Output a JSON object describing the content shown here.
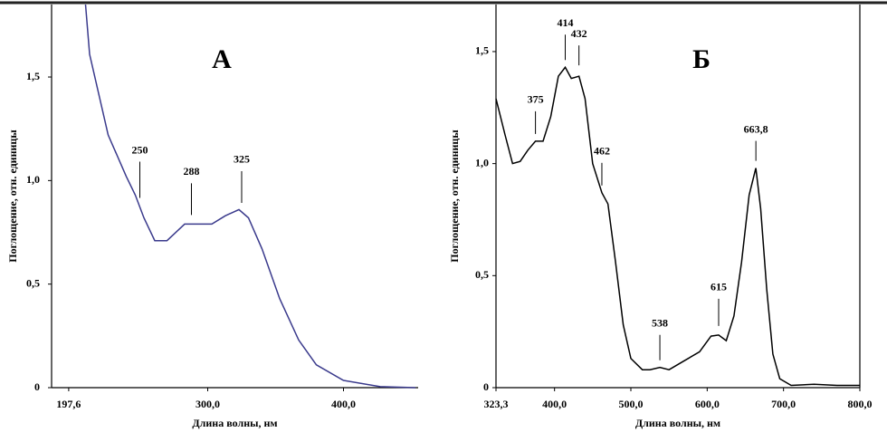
{
  "chart_data": [
    {
      "type": "line",
      "title": "А",
      "xlabel": "Длина волны, нм",
      "ylabel": "Поглощение, отн. единицы",
      "color": "#3a3a8c",
      "x": [
        210,
        213,
        226.7,
        240,
        246.7,
        253,
        261,
        270,
        283,
        290,
        303,
        313,
        323,
        330,
        340,
        353,
        367,
        380,
        400,
        427,
        453
      ],
      "values": [
        1.85,
        1.61,
        1.22,
        1.02,
        0.93,
        0.82,
        0.71,
        0.71,
        0.79,
        0.79,
        0.79,
        0.83,
        0.86,
        0.82,
        0.67,
        0.43,
        0.23,
        0.11,
        0.035,
        0.005,
        0
      ],
      "xlim": [
        185,
        455
      ],
      "ylim": [
        0,
        1.85
      ],
      "xticks": [
        {
          "value": 197.6,
          "label": "197,6"
        },
        {
          "value": 300,
          "label": "300,0"
        },
        {
          "value": 400,
          "label": "400,0"
        }
      ],
      "yticks": [
        0,
        {
          "value": 0.5,
          "label": "0,5"
        },
        {
          "value": 1,
          "label": "1,0"
        },
        {
          "value": 1.5,
          "label": "1,5"
        }
      ],
      "peak_labels": [
        250,
        288,
        325
      ]
    },
    {
      "type": "line",
      "title": "Б",
      "xlabel": "Длина волны, нм",
      "ylabel": "Поглощение, отн. единицы",
      "color": "#000000",
      "x": [
        323.3,
        335,
        345,
        355,
        365,
        375,
        385,
        395,
        405,
        414,
        422,
        432,
        440,
        450,
        462,
        470,
        480,
        490,
        500,
        515,
        525,
        538,
        550,
        570,
        590,
        605,
        615,
        625,
        635,
        645,
        655,
        663.8,
        670,
        678,
        686,
        695,
        710,
        740,
        770,
        800
      ],
      "values": [
        1.29,
        1.13,
        1.0,
        1.01,
        1.06,
        1.1,
        1.1,
        1.21,
        1.39,
        1.43,
        1.38,
        1.39,
        1.29,
        1.0,
        0.87,
        0.82,
        0.56,
        0.28,
        0.13,
        0.08,
        0.08,
        0.09,
        0.08,
        0.12,
        0.16,
        0.23,
        0.235,
        0.21,
        0.32,
        0.56,
        0.86,
        0.98,
        0.8,
        0.44,
        0.15,
        0.04,
        0.01,
        0.015,
        0.01,
        0.01
      ],
      "xlim": [
        323.3,
        800
      ],
      "ylim": [
        0,
        1.71
      ],
      "xticks": [
        {
          "value": 323.3,
          "label": "323,3"
        },
        {
          "value": 400,
          "label": "400,0"
        },
        {
          "value": 500,
          "label": "500,0"
        },
        {
          "value": 600,
          "label": "600,0"
        },
        {
          "value": 700,
          "label": "700,0"
        },
        {
          "value": 800,
          "label": "800,0"
        }
      ],
      "yticks": [
        0,
        {
          "value": 0.5,
          "label": "0,5"
        },
        {
          "value": 1,
          "label": "1,0"
        },
        {
          "value": 1.5,
          "label": "1,5"
        }
      ],
      "peak_labels": [
        375,
        414,
        432,
        462,
        538,
        615,
        {
          "value": 663.8,
          "label": "663,8"
        }
      ]
    }
  ]
}
